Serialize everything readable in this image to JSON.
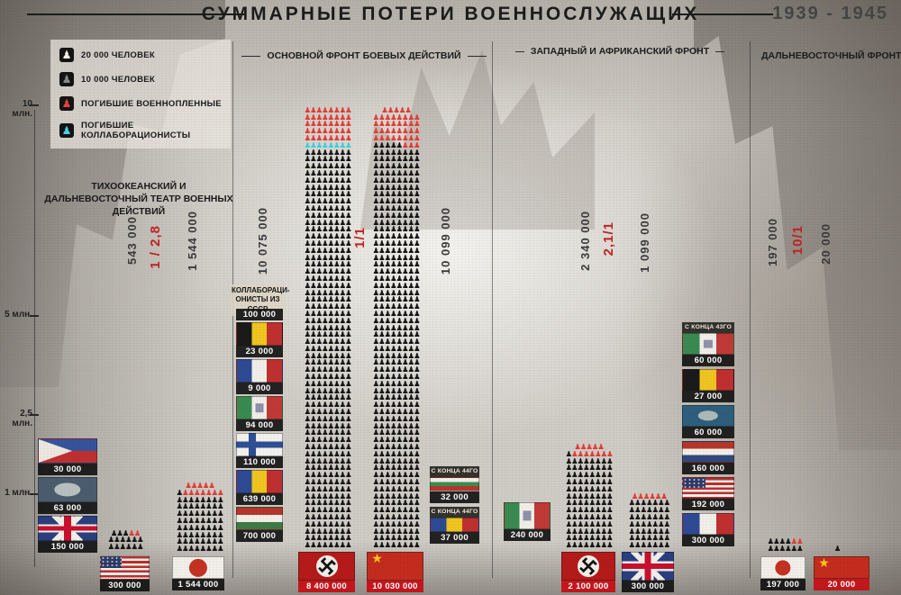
{
  "title": "СУММАРНЫЕ ПОТЕРИ ВОЕННОСЛУЖАЩИХ",
  "years": "1939 - 1945",
  "legend": {
    "items": [
      {
        "label": "20 000 ЧЕЛОВЕК",
        "icon": "person-icon",
        "color": "#f5f2ec"
      },
      {
        "label": "10 000 ЧЕЛОВЕК",
        "icon": "person-icon",
        "color": "#8a8a8a"
      },
      {
        "label": "ПОГИБШИЕ ВОЕННОПЛЕННЫЕ",
        "icon": "person-icon",
        "color": "#e8413c"
      },
      {
        "label": "ПОГИБШИЕ КОЛЛАБОРАЦИОНИСТЫ",
        "icon": "person-icon",
        "color": "#46d6e4"
      }
    ]
  },
  "y_axis": {
    "labels": [
      "10 млн.",
      "5 млн.",
      "2,5 млн.",
      "1 млн."
    ]
  },
  "chart_data": {
    "type": "pictogram-bar",
    "units": {
      "black_icon": 20000,
      "gray_icon": 10000,
      "red_icon": "погибшие военнопленные",
      "cyan_icon": "погибшие коллаборационисты"
    },
    "sections": [
      {
        "id": "pacific",
        "title": "ТИХООКЕАНСКИЙ И ДАЛЬНЕВОСТОЧНЫЙ ТЕАТР ВОЕННЫХ ДЕЙСТВИЙ",
        "losses_left": "543 000",
        "ratio": "1 / 2,8",
        "losses_right": "1 544 000",
        "allied_chips": [
          {
            "country": "Филиппины",
            "flag": "philippines",
            "value": "30 000"
          },
          {
            "country": "Австралия",
            "flag": "australia",
            "value": "63 000"
          },
          {
            "country": "Великобритания",
            "flag": "uk",
            "value": "150 000"
          }
        ],
        "bars": [
          {
            "country": "США",
            "flag": "usa",
            "value": "300 000",
            "icons": {
              "black": 15,
              "red": 2
            }
          },
          {
            "country": "Япония",
            "flag": "japan",
            "value": "1 544 000",
            "icons": {
              "black": 65,
              "red": 12
            }
          }
        ]
      },
      {
        "id": "main-front",
        "title": "ОСНОВНОЙ ФРОНТ БОЕВЫХ ДЕЙСТВИЙ",
        "losses_left": "10 075 000",
        "ratio": "1/1",
        "losses_right": "10 099 000",
        "collaborators_label": "КОЛЛАБОРАЦИ-ОНИСТЫ ИЗ СССР",
        "axis_ally_chips": [
          {
            "country": "Коллаборационисты из СССР",
            "flag": null,
            "value": "100 000"
          },
          {
            "country": "Бельгия",
            "flag": "belgium",
            "value": "23 000"
          },
          {
            "country": "Франция",
            "flag": "france",
            "value": "9 000"
          },
          {
            "country": "Италия",
            "flag": "italy",
            "value": "94 000"
          },
          {
            "country": "Финляндия",
            "flag": "finland",
            "value": "110 000"
          },
          {
            "country": "Румыния",
            "flag": "romania",
            "value": "639 000"
          },
          {
            "country": "Венгрия",
            "flag": "hungary",
            "value": "700 000"
          }
        ],
        "late_joiner_chips": [
          {
            "country": "Болгария",
            "flag": "bulgaria",
            "note": "С КОНЦА 44ГО",
            "value": "32 000"
          },
          {
            "country": "Румыния",
            "flag": "romania",
            "note": "С КОНЦА 44ГО",
            "value": "37 000"
          }
        ],
        "bars": [
          {
            "country": "Германия",
            "flag": "nazi",
            "value": "8 400 000",
            "icons": {
              "black": 456,
              "cyan": 8,
              "red": 40
            }
          },
          {
            "country": "СССР",
            "flag": "ussr",
            "value": "10 030 000",
            "icons": {
              "black": 461,
              "red": 40
            }
          }
        ]
      },
      {
        "id": "west-front",
        "title": "ЗАПАДНЫЙ И АФРИКАНСКИЙ ФРОНТ",
        "losses_left": "2 340 000",
        "ratio": "2,1/1",
        "losses_right": "1 099 000",
        "axis_ally_chips": [
          {
            "country": "Италия",
            "flag": "italy",
            "value": "240 000"
          }
        ],
        "allied_chips": [
          {
            "country": "Италия",
            "flag": "italy",
            "note": "С КОНЦА 43ГО",
            "value": "60 000"
          },
          {
            "country": "Бельгия",
            "flag": "belgium",
            "value": "27 000"
          },
          {
            "country": "Британская Индия",
            "flag": "india",
            "value": "60 000"
          },
          {
            "country": "Нидерланды",
            "flag": "netherlands",
            "value": "160 000"
          },
          {
            "country": "США",
            "flag": "usa",
            "value": "192 000"
          },
          {
            "country": "Франция",
            "flag": "france",
            "value": "300 000"
          }
        ],
        "bars": [
          {
            "country": "Германия",
            "flag": "nazi",
            "value": "2 100 000",
            "icons": {
              "black": 105,
              "red": 12
            }
          },
          {
            "country": "Великобритания",
            "flag": "uk",
            "value": "300 000",
            "icons": {
              "black": 49,
              "red": 6
            }
          }
        ]
      },
      {
        "id": "far-east",
        "title": "ДАЛЬНЕВОСТОЧНЫЙ ФРОНТ",
        "losses_left": "197 000",
        "ratio": "10/1",
        "losses_right": "20 000",
        "bars": [
          {
            "country": "Япония",
            "flag": "japan",
            "value": "197 000",
            "icons": {
              "black": 10,
              "red": 2
            }
          },
          {
            "country": "СССР",
            "flag": "ussr",
            "value": "20 000",
            "icons": {
              "black": 1
            }
          }
        ]
      }
    ]
  }
}
